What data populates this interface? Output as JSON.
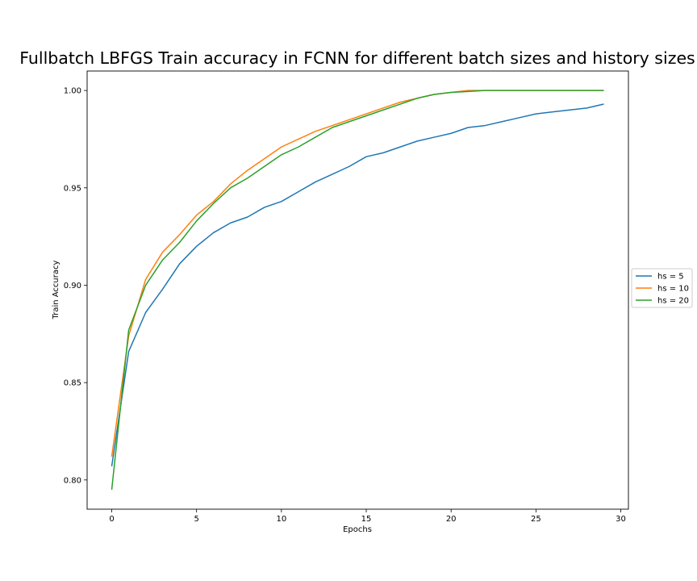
{
  "chart_data": {
    "type": "line",
    "title": "Fullbatch LBFGS Train accuracy in FCNN for different batch sizes and history sizes",
    "xlabel": "Epochs",
    "ylabel": "Train Accuracy",
    "xlim": [
      -1.45,
      30.45
    ],
    "ylim": [
      0.785,
      1.01
    ],
    "xticks": [
      0,
      5,
      10,
      15,
      20,
      25,
      30
    ],
    "yticks": [
      0.8,
      0.85,
      0.9,
      0.95,
      1.0
    ],
    "xtick_labels": [
      "0",
      "5",
      "10",
      "15",
      "20",
      "25",
      "30"
    ],
    "ytick_labels": [
      "0.80",
      "0.85",
      "0.90",
      "0.95",
      "1.00"
    ],
    "grid": false,
    "legend_position": "right, outside plot",
    "x": [
      0,
      1,
      2,
      3,
      4,
      5,
      6,
      7,
      8,
      9,
      10,
      11,
      12,
      13,
      14,
      15,
      16,
      17,
      18,
      19,
      20,
      21,
      22,
      23,
      24,
      25,
      26,
      27,
      28,
      29
    ],
    "series": [
      {
        "name": "hs = 5",
        "color": "#1f77b4",
        "values": [
          0.807,
          0.866,
          0.886,
          0.898,
          0.911,
          0.92,
          0.927,
          0.932,
          0.935,
          0.94,
          0.943,
          0.948,
          0.953,
          0.957,
          0.961,
          0.966,
          0.968,
          0.971,
          0.974,
          0.976,
          0.978,
          0.981,
          0.982,
          0.984,
          0.986,
          0.988,
          0.989,
          0.99,
          0.991,
          0.993
        ]
      },
      {
        "name": "hs = 10",
        "color": "#ff7f0e",
        "values": [
          0.812,
          0.874,
          0.903,
          0.917,
          0.926,
          0.936,
          0.943,
          0.952,
          0.959,
          0.965,
          0.971,
          0.975,
          0.979,
          0.982,
          0.985,
          0.988,
          0.991,
          0.994,
          0.996,
          0.998,
          0.999,
          1.0,
          1.0,
          1.0,
          1.0,
          1.0,
          1.0,
          1.0,
          1.0,
          1.0
        ]
      },
      {
        "name": "hs = 20",
        "color": "#2ca02c",
        "values": [
          0.795,
          0.877,
          0.9,
          0.913,
          0.922,
          0.933,
          0.942,
          0.95,
          0.955,
          0.961,
          0.967,
          0.971,
          0.976,
          0.981,
          0.984,
          0.987,
          0.99,
          0.993,
          0.996,
          0.998,
          0.999,
          0.9995,
          1.0,
          1.0,
          1.0,
          1.0,
          1.0,
          1.0,
          1.0,
          1.0
        ]
      }
    ]
  }
}
